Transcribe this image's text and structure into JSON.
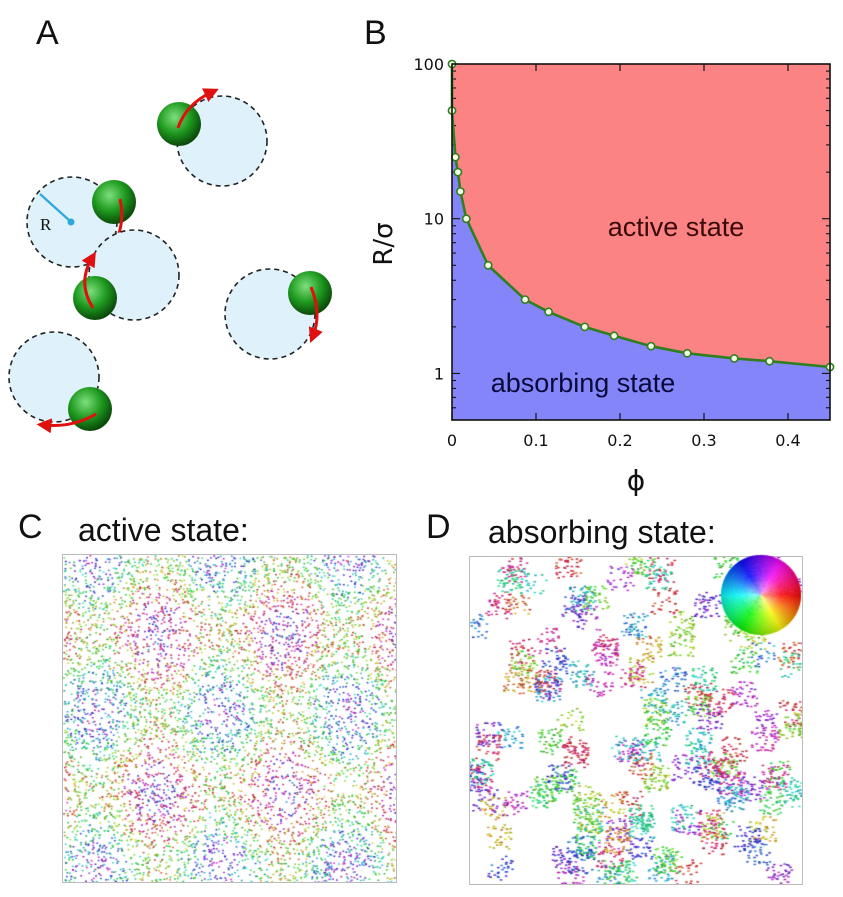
{
  "panels": {
    "a": {
      "letter": "A",
      "radius_label": "R"
    },
    "b": {
      "letter": "B"
    },
    "c": {
      "letter": "C",
      "title": "active state:"
    },
    "d": {
      "letter": "D",
      "title": "absorbing state:"
    }
  },
  "chart_data": {
    "type": "area",
    "title": "",
    "xlabel": "ϕ",
    "ylabel": "R/σ",
    "x_scale": "linear",
    "y_scale": "log",
    "xlim": [
      0,
      0.45
    ],
    "ylim": [
      0.5,
      100
    ],
    "x_ticks": [
      0,
      0.1,
      0.2,
      0.3,
      0.4
    ],
    "x_tick_labels": [
      "0",
      "0.1",
      "0.2",
      "0.3",
      "0.4"
    ],
    "y_ticks": [
      1,
      10,
      100
    ],
    "y_tick_labels": [
      "1",
      "10",
      "100"
    ],
    "grid": false,
    "boundary": {
      "x": [
        0.0,
        0.0,
        0.004,
        0.007,
        0.01,
        0.017,
        0.043,
        0.087,
        0.115,
        0.158,
        0.193,
        0.237,
        0.28,
        0.336,
        0.378,
        0.45
      ],
      "y": [
        100,
        50,
        25,
        20,
        15,
        10,
        5,
        3,
        2.5,
        2.0,
        1.75,
        1.5,
        1.35,
        1.25,
        1.2,
        1.1
      ]
    },
    "region_labels": [
      {
        "text": "active state",
        "color": "#e87474"
      },
      {
        "text": "absorbing state",
        "color": "#8282f0"
      }
    ],
    "colors": {
      "active": "#fb8383",
      "absorbing": "#8585fa",
      "boundary": "#2f7f1f"
    }
  }
}
